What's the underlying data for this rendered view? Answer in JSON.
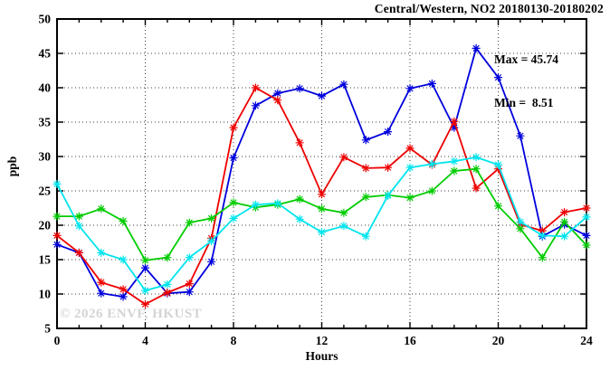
{
  "title": "Central/Western, NO2 20180130-20180202",
  "stats": {
    "max_label": "Max = 45.74",
    "min_label": "Min =  8.51"
  },
  "watermark": "© 2026 ENVF, HKUST",
  "chart_data": {
    "type": "line",
    "title": "Central/Western, NO2 20180130-20180202",
    "xlabel": "Hours",
    "ylabel": "ppb",
    "xlim": [
      0,
      24
    ],
    "ylim": [
      5,
      50
    ],
    "x_major_ticks": [
      0,
      4,
      8,
      12,
      16,
      20,
      24
    ],
    "y_ticks": [
      5,
      10,
      15,
      20,
      25,
      30,
      35,
      40,
      45,
      50
    ],
    "x_minor_step": 1,
    "grid": true,
    "legend_position": "none",
    "marker": "star",
    "annotations": {
      "max": 45.74,
      "min": 8.51
    },
    "x": [
      0,
      1,
      2,
      3,
      4,
      5,
      6,
      7,
      8,
      9,
      10,
      11,
      12,
      13,
      14,
      15,
      16,
      17,
      18,
      19,
      20,
      21,
      22,
      23,
      24
    ],
    "series": [
      {
        "name": "blue",
        "color": "#0000dd",
        "values": [
          17.2,
          16.0,
          10.1,
          9.6,
          13.8,
          10.1,
          10.3,
          14.7,
          29.8,
          37.4,
          39.2,
          39.9,
          38.8,
          40.5,
          32.4,
          33.6,
          39.9,
          40.6,
          34.2,
          45.74,
          41.5,
          33.0,
          18.4,
          20.1,
          18.5
        ]
      },
      {
        "name": "red",
        "color": "#ee0000",
        "values": [
          18.5,
          16.0,
          11.7,
          10.7,
          8.51,
          10.2,
          11.5,
          18.1,
          34.2,
          40.0,
          38.2,
          32.0,
          24.5,
          29.9,
          28.3,
          28.4,
          31.2,
          28.8,
          35.1,
          25.4,
          28.2,
          20.1,
          19.2,
          21.9,
          22.5
        ]
      },
      {
        "name": "green",
        "color": "#00cc00",
        "values": [
          21.3,
          21.3,
          22.4,
          20.6,
          14.9,
          15.3,
          20.4,
          21.0,
          23.3,
          22.6,
          23.0,
          23.8,
          22.4,
          21.8,
          24.1,
          24.4,
          24.0,
          25.0,
          27.9,
          28.2,
          22.8,
          19.5,
          15.3,
          20.5,
          17.1
        ]
      },
      {
        "name": "cyan",
        "color": "#00e5ee",
        "values": [
          26.0,
          19.9,
          16.0,
          15.0,
          10.5,
          11.4,
          15.3,
          17.7,
          21.0,
          23.0,
          23.2,
          20.9,
          19.0,
          19.9,
          18.4,
          24.3,
          28.4,
          28.9,
          29.3,
          29.9,
          28.8,
          20.5,
          18.5,
          18.4,
          21.2
        ]
      }
    ]
  }
}
